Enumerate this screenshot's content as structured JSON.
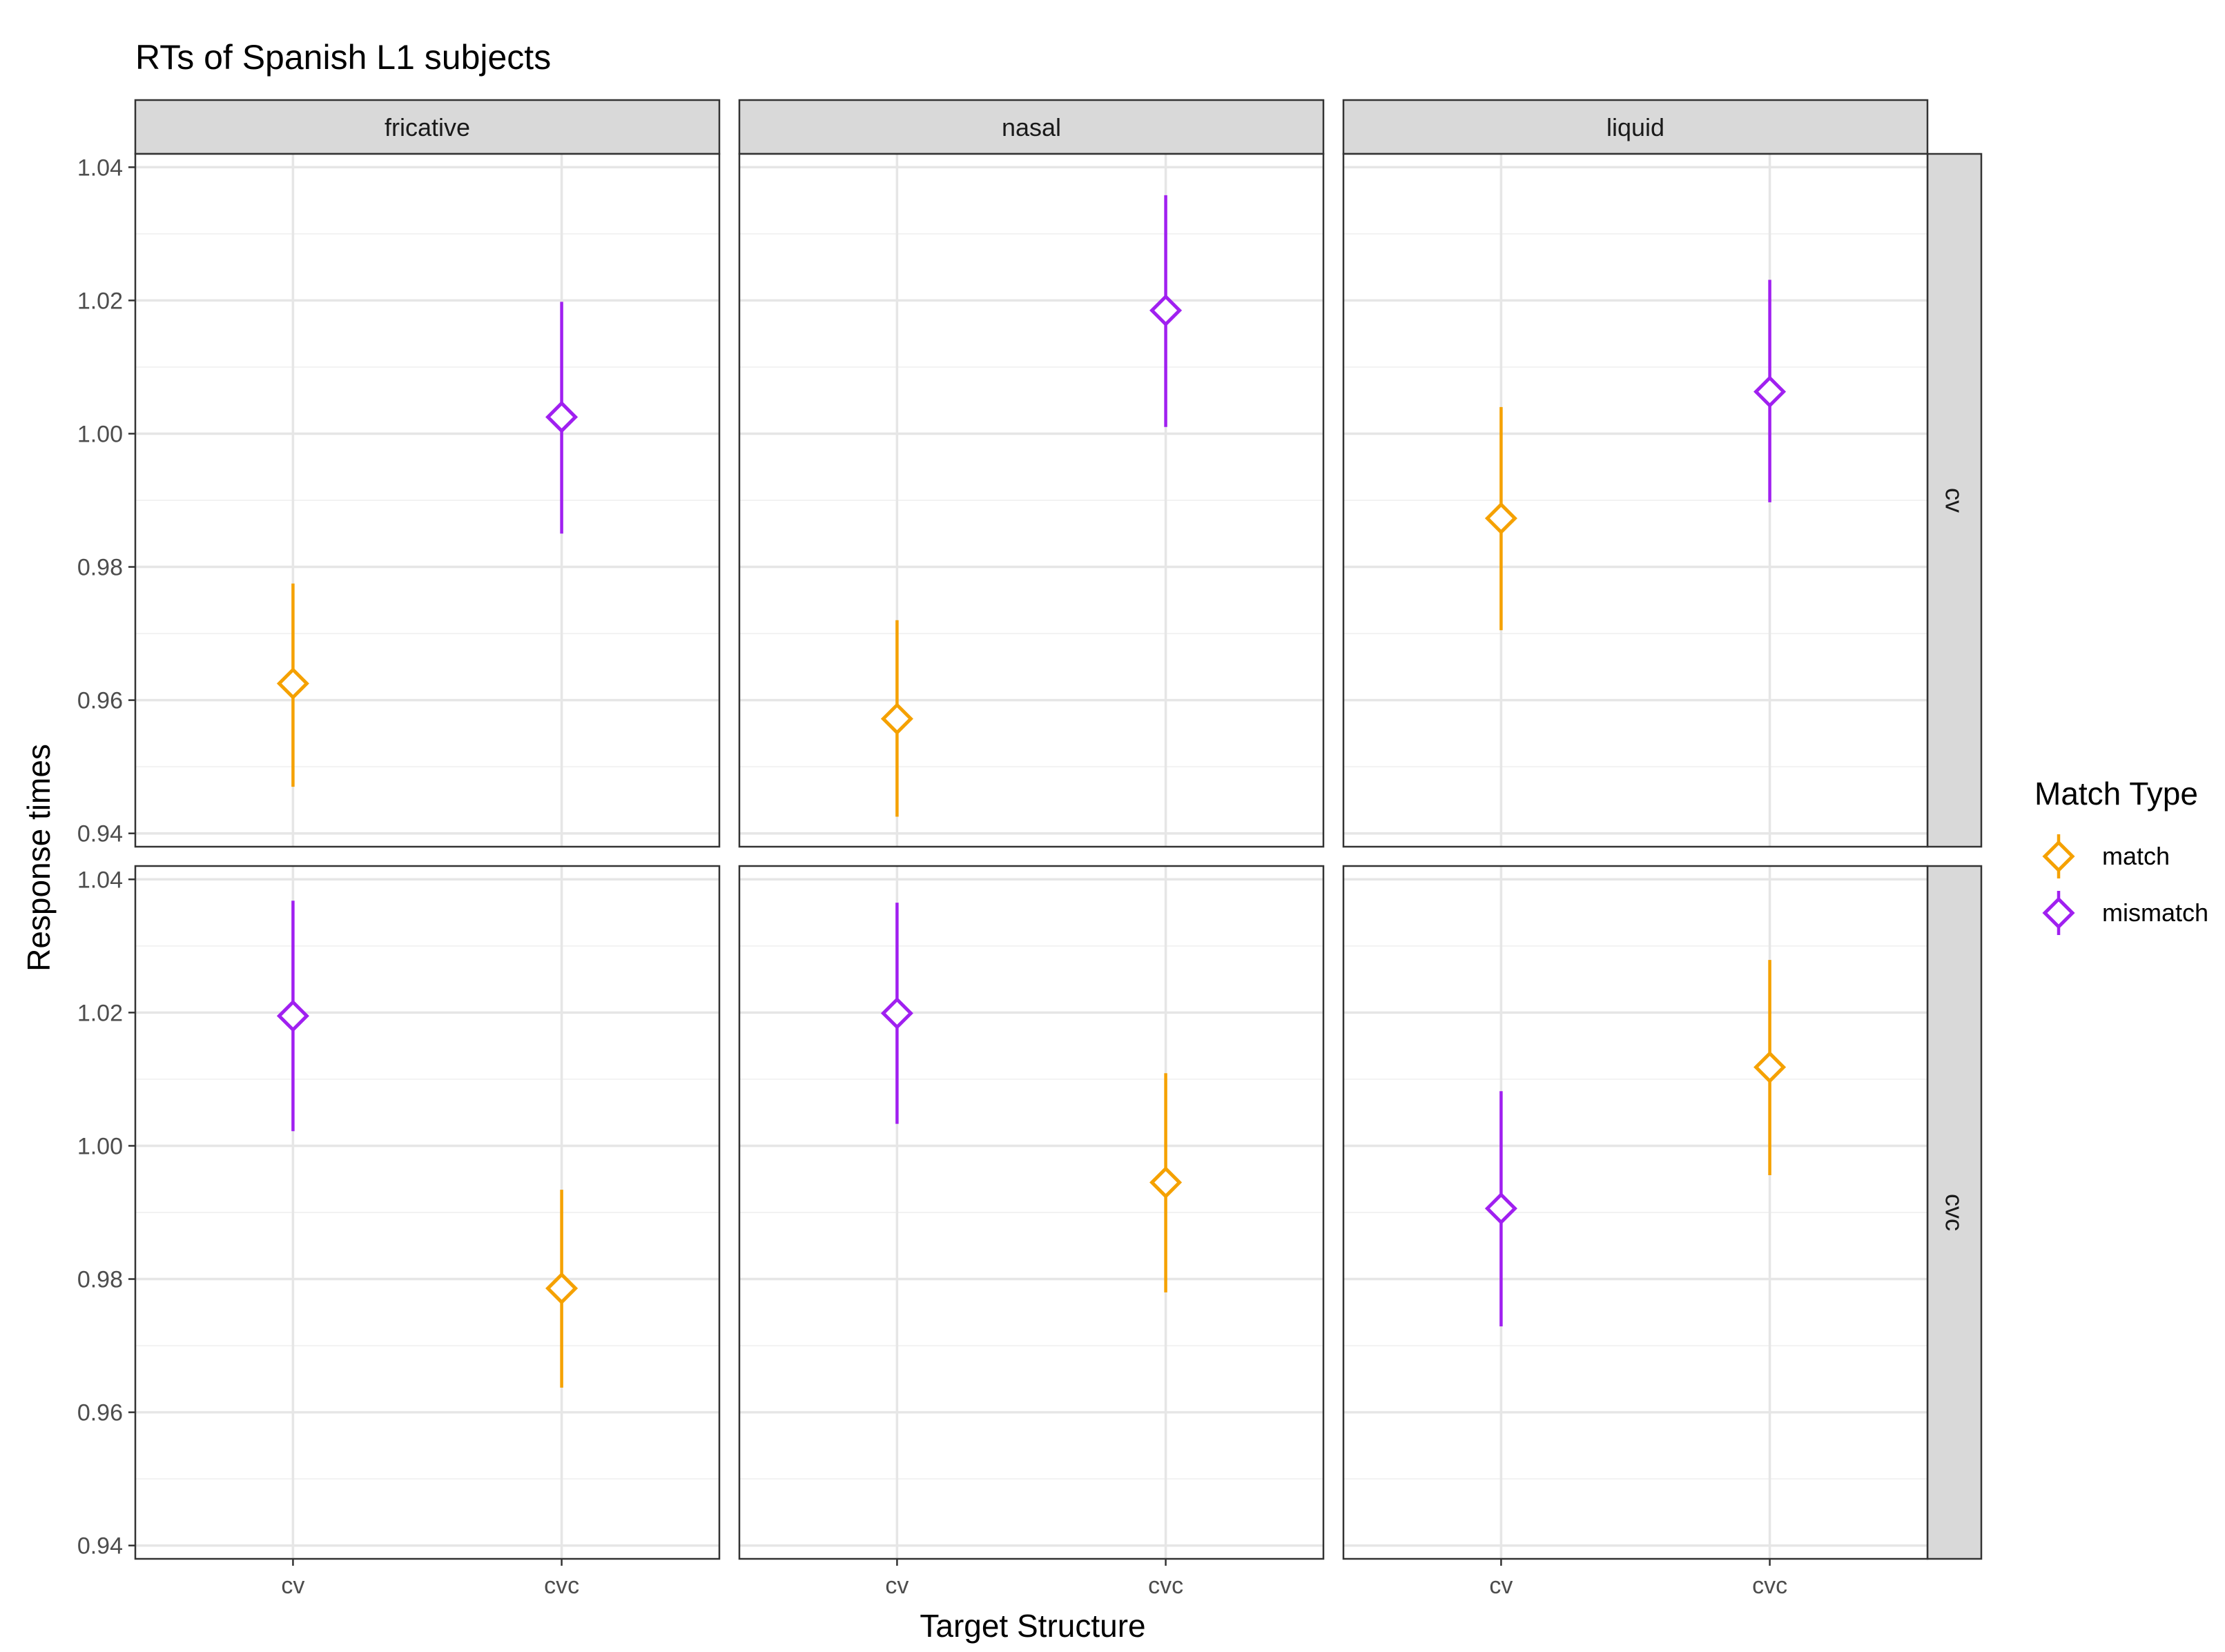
{
  "chart_data": {
    "type": "pointrange",
    "title": "RTs of Spanish L1 subjects",
    "xlabel": "Target Structure",
    "ylabel": "Response times",
    "x_categories": [
      "cv",
      "cvc"
    ],
    "ylim": [
      0.938,
      1.042
    ],
    "y_ticks": [
      0.94,
      0.96,
      0.98,
      1.0,
      1.02,
      1.04
    ],
    "y_tick_labels": [
      "0.94",
      "0.96",
      "0.98",
      "1.00",
      "1.02",
      "1.04"
    ],
    "columns": [
      "fricative",
      "nasal",
      "liquid"
    ],
    "rows": [
      "cv",
      "cvc"
    ],
    "legend": {
      "title": "Match Type",
      "position": "right",
      "entries": [
        {
          "name": "match",
          "color": "#F5A100"
        },
        {
          "name": "mismatch",
          "color": "#A020F0"
        }
      ]
    },
    "panels": [
      {
        "column": "fricative",
        "row": "cv",
        "points": [
          {
            "x": "cv",
            "group": "match",
            "y": 0.9625,
            "ymin": 0.947,
            "ymax": 0.9775
          },
          {
            "x": "cvc",
            "group": "mismatch",
            "y": 1.0025,
            "ymin": 0.985,
            "ymax": 1.0198
          }
        ]
      },
      {
        "column": "nasal",
        "row": "cv",
        "points": [
          {
            "x": "cv",
            "group": "match",
            "y": 0.9572,
            "ymin": 0.9425,
            "ymax": 0.972
          },
          {
            "x": "cvc",
            "group": "mismatch",
            "y": 1.0185,
            "ymin": 1.001,
            "ymax": 1.0358
          }
        ]
      },
      {
        "column": "liquid",
        "row": "cv",
        "points": [
          {
            "x": "cv",
            "group": "match",
            "y": 0.9873,
            "ymin": 0.9705,
            "ymax": 1.004
          },
          {
            "x": "cvc",
            "group": "mismatch",
            "y": 1.0063,
            "ymin": 0.9897,
            "ymax": 1.0231
          }
        ]
      },
      {
        "column": "fricative",
        "row": "cvc",
        "points": [
          {
            "x": "cv",
            "group": "mismatch",
            "y": 1.0195,
            "ymin": 1.0022,
            "ymax": 1.0368
          },
          {
            "x": "cvc",
            "group": "match",
            "y": 0.9786,
            "ymin": 0.9637,
            "ymax": 0.9934
          }
        ]
      },
      {
        "column": "nasal",
        "row": "cvc",
        "points": [
          {
            "x": "cv",
            "group": "mismatch",
            "y": 1.0199,
            "ymin": 1.0033,
            "ymax": 1.0365
          },
          {
            "x": "cvc",
            "group": "match",
            "y": 0.9945,
            "ymin": 0.978,
            "ymax": 1.0109
          }
        ]
      },
      {
        "column": "liquid",
        "row": "cvc",
        "points": [
          {
            "x": "cv",
            "group": "mismatch",
            "y": 0.9906,
            "ymin": 0.9729,
            "ymax": 1.0082
          },
          {
            "x": "cvc",
            "group": "match",
            "y": 1.0118,
            "ymin": 0.9956,
            "ymax": 1.0279
          }
        ]
      }
    ]
  }
}
